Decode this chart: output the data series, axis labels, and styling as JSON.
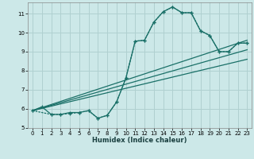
{
  "xlabel": "Humidex (Indice chaleur)",
  "bg_color": "#cce8e8",
  "grid_color": "#b0d0d0",
  "line_color": "#1a7068",
  "xlim": [
    -0.5,
    23.5
  ],
  "ylim": [
    5,
    11.6
  ],
  "yticks": [
    5,
    6,
    7,
    8,
    9,
    10,
    11
  ],
  "xticks": [
    0,
    1,
    2,
    3,
    4,
    5,
    6,
    7,
    8,
    9,
    10,
    11,
    12,
    13,
    14,
    15,
    16,
    17,
    18,
    19,
    20,
    21,
    22,
    23
  ],
  "curve1_x": [
    0,
    1,
    2,
    3,
    4,
    5,
    6,
    7,
    8,
    9,
    10,
    11,
    12,
    13,
    14,
    15,
    16,
    17,
    18,
    19,
    20,
    21,
    22,
    23
  ],
  "curve1_y": [
    5.9,
    6.1,
    5.7,
    5.7,
    5.8,
    5.8,
    5.9,
    5.5,
    5.65,
    6.35,
    7.6,
    9.55,
    9.6,
    10.55,
    11.1,
    11.35,
    11.05,
    11.05,
    10.1,
    9.85,
    9.0,
    9.0,
    9.45,
    9.45
  ],
  "curve2_x": [
    0,
    2,
    3,
    4,
    5,
    6,
    7,
    8,
    9,
    10,
    11,
    12,
    13,
    14,
    15,
    16,
    17,
    18,
    19,
    20,
    21,
    22,
    23
  ],
  "curve2_y": [
    5.9,
    5.7,
    5.7,
    5.75,
    5.8,
    5.9,
    5.5,
    5.65,
    6.35,
    7.6,
    9.55,
    9.6,
    10.55,
    11.1,
    11.35,
    11.05,
    11.05,
    10.1,
    9.85,
    9.0,
    9.0,
    9.45,
    9.45
  ],
  "trend1_x": [
    0,
    23
  ],
  "trend1_y": [
    5.9,
    9.6
  ],
  "trend2_x": [
    0,
    23
  ],
  "trend2_y": [
    5.9,
    9.1
  ],
  "trend3_x": [
    0,
    23
  ],
  "trend3_y": [
    5.9,
    8.6
  ]
}
